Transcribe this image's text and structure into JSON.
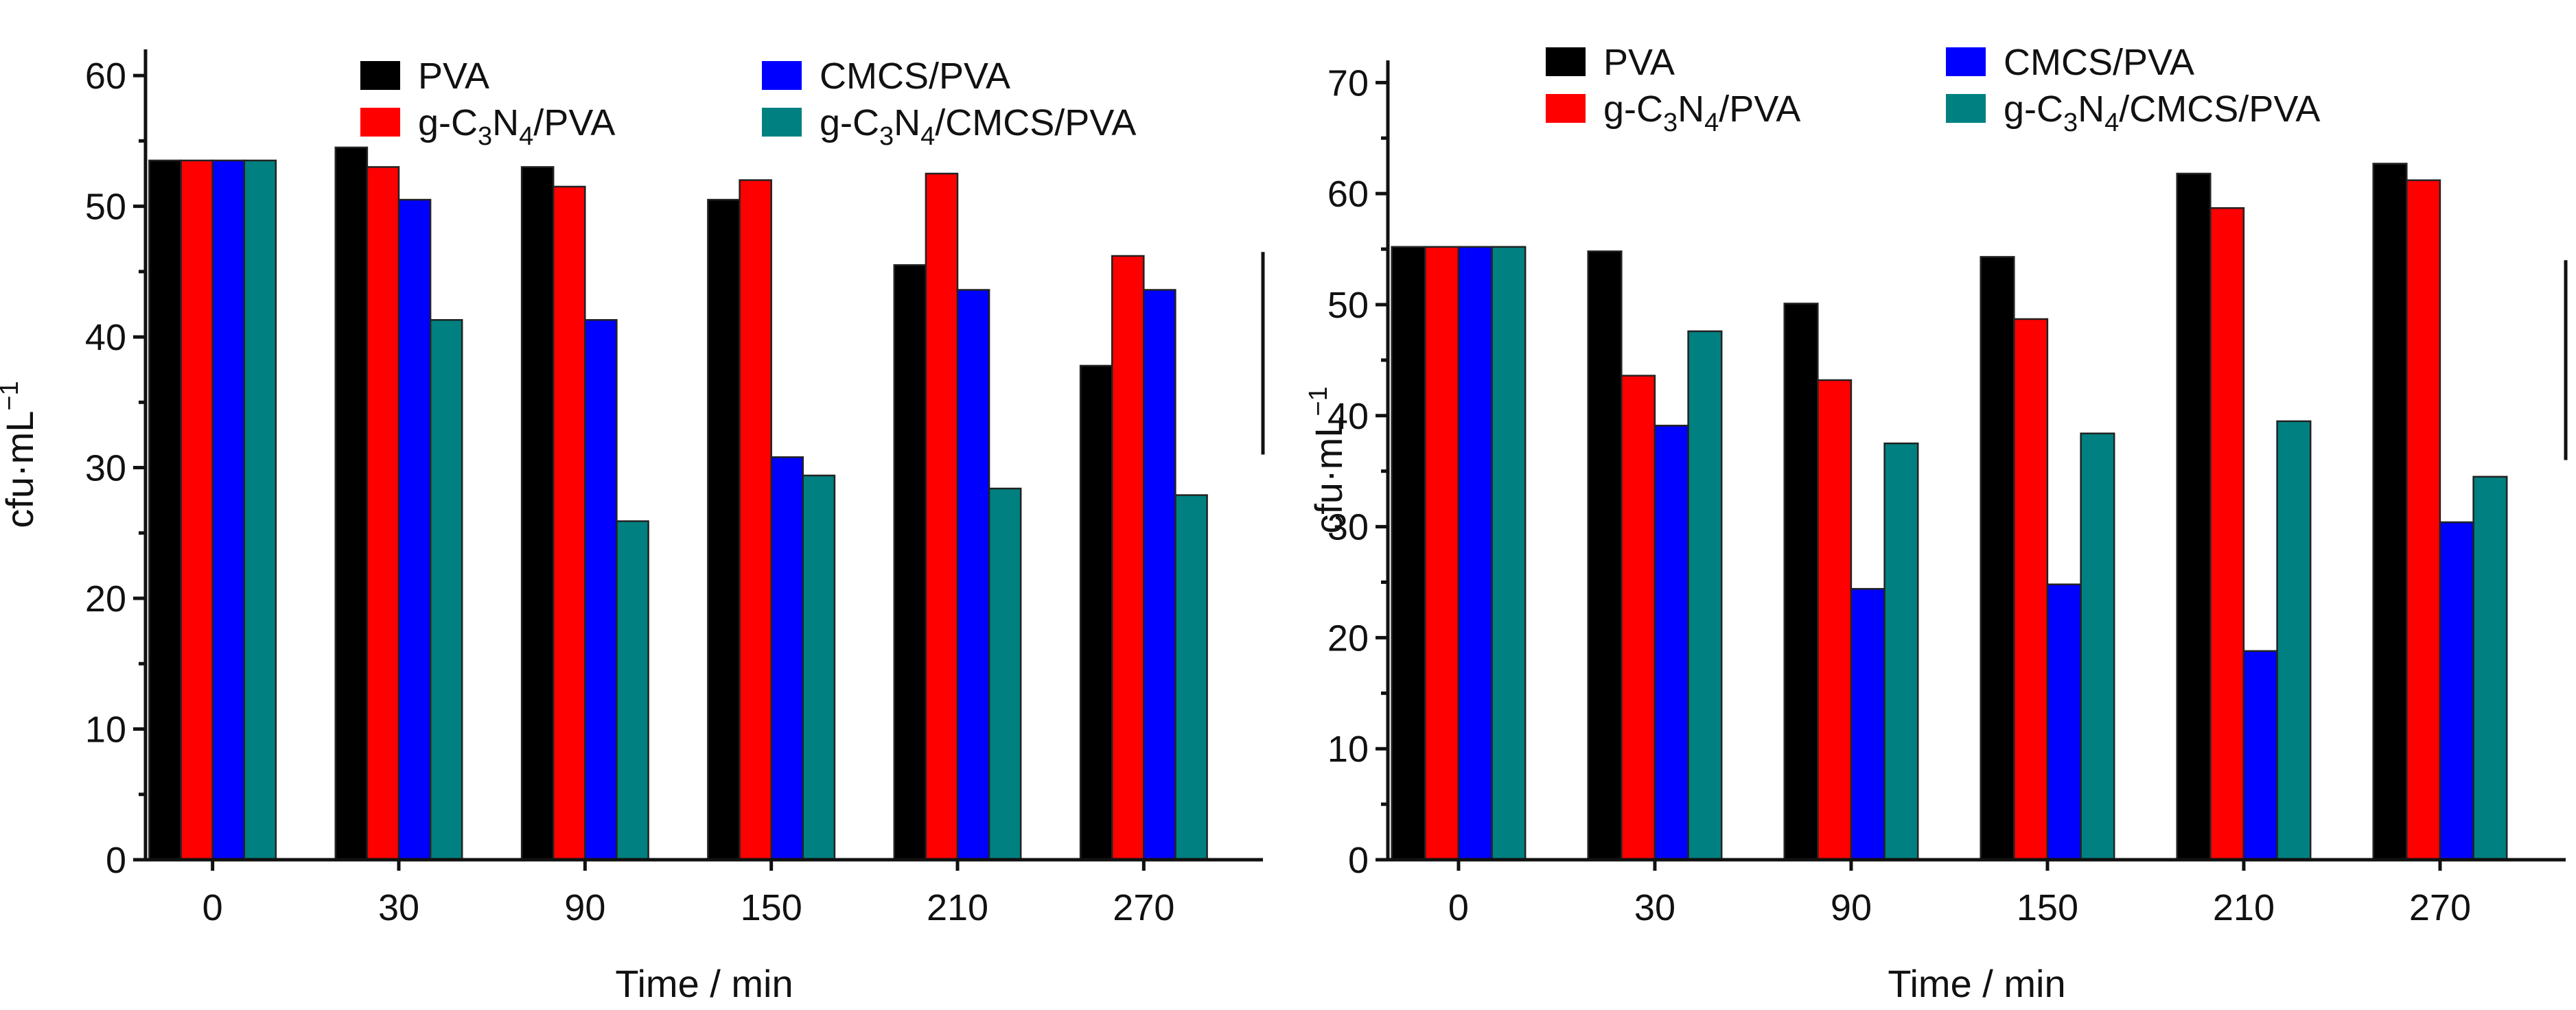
{
  "chart_data": [
    {
      "type": "bar",
      "xlabel": "Time / min",
      "ylabel": "cfu·mL",
      "ylabel_sup": "−1",
      "ylim": [
        0,
        62
      ],
      "yticks": [
        0,
        10,
        20,
        30,
        40,
        50,
        60
      ],
      "categories": [
        "0",
        "30",
        "90",
        "150",
        "210",
        "270"
      ],
      "legend_position": "top",
      "series": [
        {
          "name": "PVA",
          "label_parts": [
            "PVA"
          ],
          "color": "#000000",
          "values": [
            53.5,
            54.5,
            53.0,
            50.5,
            45.5,
            37.8
          ]
        },
        {
          "name": "g-C3N4/PVA",
          "label_parts": [
            "g-C",
            "3",
            "N",
            "4",
            "/PVA"
          ],
          "color": "#ff0000",
          "values": [
            53.5,
            53.0,
            51.5,
            52.0,
            52.5,
            46.2
          ]
        },
        {
          "name": "CMCS/PVA",
          "label_parts": [
            "CMCS/PVA"
          ],
          "color": "#0000ff",
          "values": [
            53.5,
            50.5,
            41.3,
            30.8,
            43.6,
            43.6
          ]
        },
        {
          "name": "g-C3N4/CMCS/PVA",
          "label_parts": [
            "g-C",
            "3",
            "N",
            "4",
            "/CMCS/PVA"
          ],
          "color": "#008080",
          "values": [
            53.5,
            41.3,
            25.9,
            29.4,
            28.4,
            27.9
          ]
        }
      ]
    },
    {
      "type": "bar",
      "xlabel": "Time / min",
      "ylabel": "cfu·mL",
      "ylabel_sup": "−1",
      "ylim": [
        0,
        72
      ],
      "yticks": [
        0,
        10,
        20,
        30,
        40,
        50,
        60,
        70
      ],
      "categories": [
        "0",
        "30",
        "90",
        "150",
        "210",
        "270"
      ],
      "legend_position": "top",
      "series": [
        {
          "name": "PVA",
          "label_parts": [
            "PVA"
          ],
          "color": "#000000",
          "values": [
            55.2,
            54.8,
            50.1,
            54.3,
            61.8,
            62.7
          ]
        },
        {
          "name": "g-C3N4/PVA",
          "label_parts": [
            "g-C",
            "3",
            "N",
            "4",
            "/PVA"
          ],
          "color": "#ff0000",
          "values": [
            55.2,
            43.6,
            43.2,
            48.7,
            58.7,
            61.2
          ]
        },
        {
          "name": "CMCS/PVA",
          "label_parts": [
            "CMCS/PVA"
          ],
          "color": "#0000ff",
          "values": [
            55.2,
            39.1,
            24.4,
            24.8,
            18.8,
            30.4
          ]
        },
        {
          "name": "g-C3N4/CMCS/PVA",
          "label_parts": [
            "g-C",
            "3",
            "N",
            "4",
            "/CMCS/PVA"
          ],
          "color": "#008080",
          "values": [
            55.2,
            47.6,
            37.5,
            38.4,
            39.5,
            34.5
          ]
        }
      ]
    }
  ]
}
